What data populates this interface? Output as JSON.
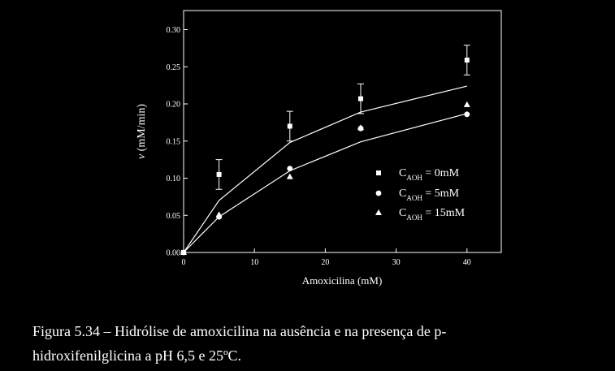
{
  "chart_data": {
    "type": "scatter",
    "xlabel": "Amoxicilina (mM)",
    "ylabel_italic": "v",
    "ylabel_rest": " (mM/min)",
    "xlim": [
      0,
      45
    ],
    "ylim": [
      0,
      0.32
    ],
    "x_ticks": [
      "0",
      "10",
      "20",
      "30",
      "40"
    ],
    "y_ticks": [
      "0.00",
      "0.05",
      "0.10",
      "0.15",
      "0.20",
      "0.25",
      "0.30"
    ],
    "series": [
      {
        "marker": "square",
        "legend_main": "C",
        "legend_sub": "AOH",
        "legend_value": " =  0mM",
        "x": [
          0,
          5,
          15,
          25,
          40
        ],
        "y": [
          0,
          0.105,
          0.17,
          0.207,
          0.259
        ],
        "err": [
          0,
          0.02,
          0.02,
          0.02,
          0.02
        ]
      },
      {
        "marker": "circle",
        "legend_main": "C",
        "legend_sub": "AOH",
        "legend_value": " =  5mM",
        "x": [
          0,
          5,
          15,
          25,
          40
        ],
        "y": [
          0,
          0.048,
          0.113,
          0.167,
          0.186
        ]
      },
      {
        "marker": "triangle",
        "legend_main": "C",
        "legend_sub": "AOH",
        "legend_value": " = 15mM",
        "x": [
          0,
          5,
          15,
          25,
          40
        ],
        "y": [
          0,
          0.051,
          0.102,
          0.168,
          0.199
        ]
      }
    ],
    "fit_lines": [
      {
        "x": [
          0,
          5,
          15,
          25,
          40
        ],
        "y": [
          0,
          0.07,
          0.148,
          0.189,
          0.224
        ]
      },
      {
        "x": [
          0,
          5,
          15,
          25,
          40
        ],
        "y": [
          0,
          0.048,
          0.11,
          0.149,
          0.187
        ]
      }
    ],
    "colors": {
      "background": "#000000",
      "foreground": "#ffffff"
    }
  },
  "caption_line1": "Figura 5.34 – Hidrólise de amoxicilina na ausência e na presença de p-",
  "caption_line2": "hidroxifenilglicina a pH 6,5 e 25ºC."
}
